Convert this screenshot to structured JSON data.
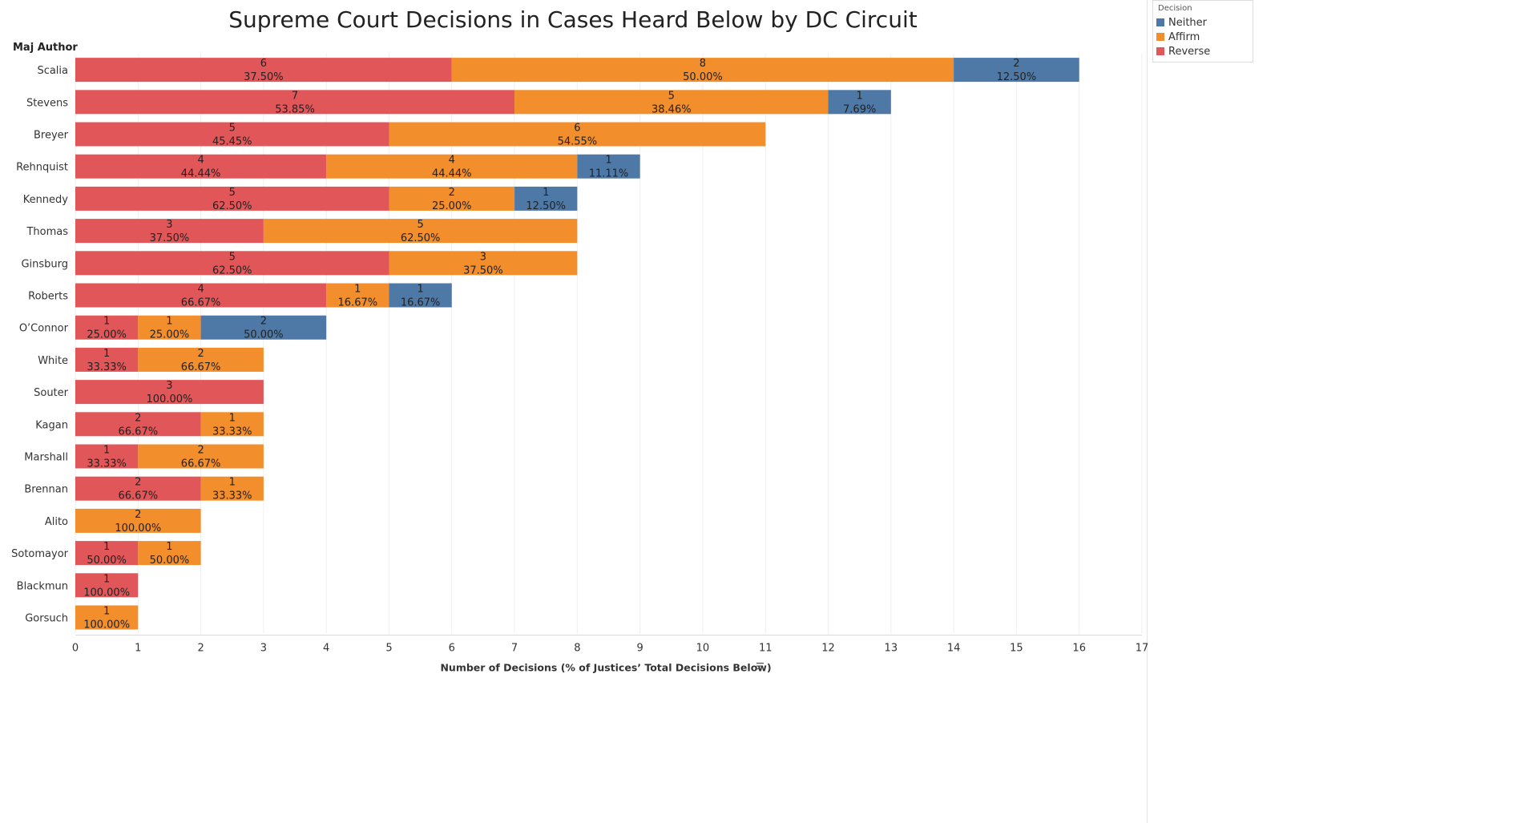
{
  "chart_data": {
    "type": "bar",
    "orientation": "horizontal",
    "stacked": true,
    "title": "Supreme Court Decisions in Cases Heard Below by DC Circuit",
    "row_header": "Maj Author",
    "xlabel": "Number of Decisions (% of Justices’ Total Decisions Below)",
    "sort_icon": "sort-descending-icon",
    "xlim": [
      0,
      17
    ],
    "xticks": [
      0,
      1,
      2,
      3,
      4,
      5,
      6,
      7,
      8,
      9,
      10,
      11,
      12,
      13,
      14,
      15,
      16,
      17
    ],
    "grid": true,
    "legend_position": "top-right",
    "legend_title": "Decision",
    "legend_items": [
      {
        "name": "Neither",
        "color": "#4e79a7"
      },
      {
        "name": "Affirm",
        "color": "#f28e2b"
      },
      {
        "name": "Reverse",
        "color": "#e15759"
      }
    ],
    "stack_order": [
      "Reverse",
      "Affirm",
      "Neither"
    ],
    "categories": [
      "Scalia",
      "Stevens",
      "Breyer",
      "Rehnquist",
      "Kennedy",
      "Thomas",
      "Ginsburg",
      "Roberts",
      "O’Connor",
      "White",
      "Souter",
      "Kagan",
      "Marshall",
      "Brennan",
      "Alito",
      "Sotomayor",
      "Blackmun",
      "Gorsuch"
    ],
    "series": [
      {
        "name": "Reverse",
        "color": "#e15759",
        "values": [
          6,
          7,
          5,
          4,
          5,
          3,
          5,
          4,
          1,
          1,
          3,
          2,
          1,
          2,
          0,
          1,
          1,
          0
        ],
        "pct": [
          "37.50%",
          "53.85%",
          "45.45%",
          "44.44%",
          "62.50%",
          "37.50%",
          "62.50%",
          "66.67%",
          "25.00%",
          "33.33%",
          "100.00%",
          "66.67%",
          "33.33%",
          "66.67%",
          "",
          "50.00%",
          "100.00%",
          ""
        ]
      },
      {
        "name": "Affirm",
        "color": "#f28e2b",
        "values": [
          8,
          5,
          6,
          4,
          2,
          5,
          3,
          1,
          1,
          2,
          0,
          1,
          2,
          1,
          2,
          1,
          0,
          1
        ],
        "pct": [
          "50.00%",
          "38.46%",
          "54.55%",
          "44.44%",
          "25.00%",
          "62.50%",
          "37.50%",
          "16.67%",
          "25.00%",
          "66.67%",
          "",
          "33.33%",
          "66.67%",
          "33.33%",
          "100.00%",
          "50.00%",
          "",
          "100.00%"
        ]
      },
      {
        "name": "Neither",
        "color": "#4e79a7",
        "values": [
          2,
          1,
          0,
          1,
          1,
          0,
          0,
          1,
          2,
          0,
          0,
          0,
          0,
          0,
          0,
          0,
          0,
          0
        ],
        "pct": [
          "12.50%",
          "7.69%",
          "",
          "11.11%",
          "12.50%",
          "",
          "",
          "16.67%",
          "50.00%",
          "",
          "",
          "",
          "",
          "",
          "",
          "",
          "",
          ""
        ]
      }
    ]
  }
}
